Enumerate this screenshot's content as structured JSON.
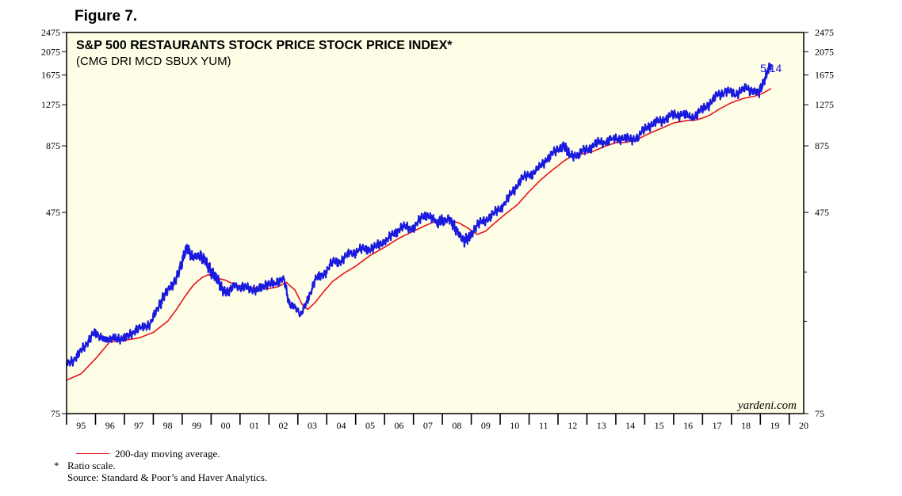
{
  "figure_label": "Figure 7.",
  "legend": {
    "moving_average": "200-day moving average.",
    "footnote_marker": "*",
    "footnote": "Ratio scale.",
    "source": "Source: Standard & Poor’s and Haver Analytics."
  },
  "colors": {
    "background": "#fefde5",
    "price_line": "#1a1adf",
    "moving_average_line": "#e8141c",
    "label_blue": "#1a1adf"
  },
  "chart_data": {
    "type": "line",
    "title": "S&P 500 RESTAURANTS STOCK PRICE STOCK PRICE INDEX*",
    "subtitle": "(CMG DRI MCD SBUX YUM)",
    "scale": "log",
    "ylim": [
      75,
      2475
    ],
    "xlim": [
      1995,
      2020.5
    ],
    "y_ticks": [
      75,
      475,
      875,
      1275,
      1675,
      2075,
      2475
    ],
    "x_tick_labels": [
      "95",
      "96",
      "97",
      "98",
      "99",
      "00",
      "01",
      "02",
      "03",
      "04",
      "05",
      "06",
      "07",
      "08",
      "09",
      "10",
      "11",
      "12",
      "13",
      "14",
      "15",
      "16",
      "17",
      "18",
      "19",
      "20"
    ],
    "end_label": "5/14",
    "watermark": "yardeni.com",
    "series": [
      {
        "name": "S&P 500 Restaurants Stock Price Index",
        "x": [
          1995.0,
          1995.3,
          1995.6,
          1995.9,
          1996.2,
          1996.45,
          1996.7,
          1997.0,
          1997.3,
          1997.6,
          1997.9,
          1998.2,
          1998.4,
          1998.7,
          1998.95,
          1999.15,
          1999.35,
          1999.6,
          1999.8,
          2000.0,
          2000.2,
          2000.4,
          2000.6,
          2000.8,
          2001.0,
          2001.3,
          2001.6,
          2001.9,
          2002.2,
          2002.5,
          2002.7,
          2002.9,
          2003.1,
          2003.3,
          2003.6,
          2003.9,
          2004.2,
          2004.5,
          2004.8,
          2005.1,
          2005.4,
          2005.7,
          2006.0,
          2006.3,
          2006.6,
          2006.9,
          2007.2,
          2007.5,
          2007.8,
          2008.0,
          2008.3,
          2008.5,
          2008.75,
          2008.95,
          2009.2,
          2009.5,
          2009.8,
          2010.1,
          2010.4,
          2010.7,
          2011.0,
          2011.3,
          2011.6,
          2011.9,
          2012.2,
          2012.4,
          2012.7,
          2013.0,
          2013.3,
          2013.6,
          2013.9,
          2014.2,
          2014.5,
          2014.8,
          2015.1,
          2015.4,
          2015.7,
          2016.0,
          2016.3,
          2016.6,
          2016.9,
          2017.2,
          2017.5,
          2017.8,
          2018.1,
          2018.4,
          2018.7,
          2018.95,
          2019.1,
          2019.25,
          2019.37
        ],
        "values": [
          117,
          125,
          137,
          157,
          150,
          147,
          152,
          148,
          160,
          165,
          172,
          200,
          225,
          243,
          290,
          345,
          315,
          320,
          305,
          275,
          260,
          232,
          228,
          245,
          235,
          240,
          230,
          248,
          245,
          265,
          205,
          200,
          185,
          210,
          255,
          270,
          300,
          305,
          325,
          335,
          340,
          345,
          365,
          385,
          420,
          405,
          440,
          470,
          430,
          445,
          440,
          400,
          365,
          380,
          420,
          445,
          470,
          505,
          565,
          640,
          670,
          700,
          775,
          825,
          890,
          800,
          810,
          845,
          890,
          910,
          930,
          940,
          925,
          955,
          1050,
          1080,
          1120,
          1160,
          1170,
          1130,
          1190,
          1280,
          1380,
          1450,
          1400,
          1480,
          1450,
          1430,
          1550,
          1720,
          1850
        ]
      },
      {
        "name": "200-day moving average",
        "x": [
          1995.0,
          1995.5,
          1996.0,
          1996.5,
          1997.0,
          1997.5,
          1998.0,
          1998.5,
          1998.8,
          1999.1,
          1999.4,
          1999.7,
          1999.9,
          2000.2,
          2000.5,
          2000.8,
          2001.2,
          2001.6,
          2002.0,
          2002.3,
          2002.6,
          2002.9,
          2003.15,
          2003.35,
          2003.6,
          2003.9,
          2004.2,
          2004.6,
          2005.0,
          2005.5,
          2006.0,
          2006.5,
          2007.0,
          2007.4,
          2007.8,
          2008.2,
          2008.6,
          2008.9,
          2009.2,
          2009.5,
          2009.8,
          2010.2,
          2010.6,
          2011.0,
          2011.4,
          2011.8,
          2012.2,
          2012.5,
          2012.8,
          2013.2,
          2013.6,
          2014.0,
          2014.4,
          2014.8,
          2015.2,
          2015.6,
          2016.0,
          2016.4,
          2016.8,
          2017.2,
          2017.6,
          2018.0,
          2018.4,
          2018.8,
          2019.1,
          2019.37
        ],
        "values": [
          102,
          108,
          124,
          145,
          147,
          150,
          158,
          175,
          195,
          220,
          245,
          262,
          268,
          260,
          255,
          245,
          240,
          237,
          236,
          240,
          250,
          233,
          204,
          195,
          208,
          230,
          252,
          272,
          290,
          320,
          345,
          375,
          400,
          420,
          440,
          445,
          430,
          410,
          388,
          400,
          430,
          470,
          510,
          575,
          640,
          700,
          760,
          800,
          810,
          830,
          870,
          900,
          905,
          935,
          985,
          1030,
          1080,
          1100,
          1110,
          1150,
          1230,
          1300,
          1350,
          1380,
          1420,
          1480
        ]
      }
    ]
  }
}
